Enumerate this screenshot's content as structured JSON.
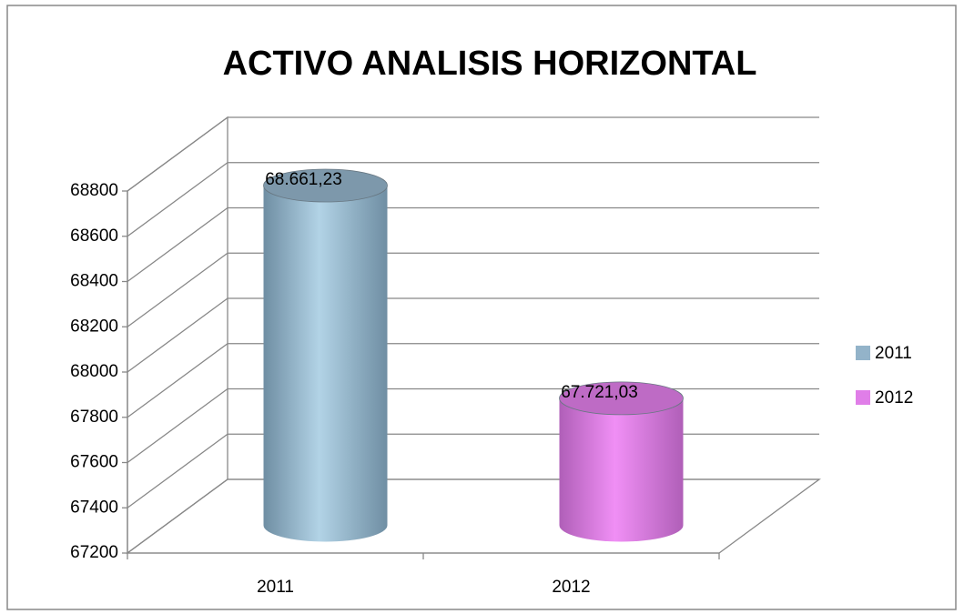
{
  "chart_data": {
    "type": "bar3d-cylinder",
    "title": "ACTIVO  ANALISIS HORIZONTAL",
    "categories": [
      "2011",
      "2012"
    ],
    "series": [
      {
        "name": "2011",
        "color": "#93b3c9",
        "values": [
          68661.23,
          null
        ],
        "value_labels": [
          "68.661,23",
          null
        ]
      },
      {
        "name": "2012",
        "color": "#e07ee8",
        "values": [
          null,
          67721.03
        ],
        "value_labels": [
          null,
          "67.721,03"
        ]
      }
    ],
    "ylim": [
      67200,
      68800
    ],
    "yticks": [
      67200,
      67400,
      67600,
      67800,
      68000,
      68200,
      68400,
      68600,
      68800
    ],
    "grid": true,
    "legend": "right"
  }
}
